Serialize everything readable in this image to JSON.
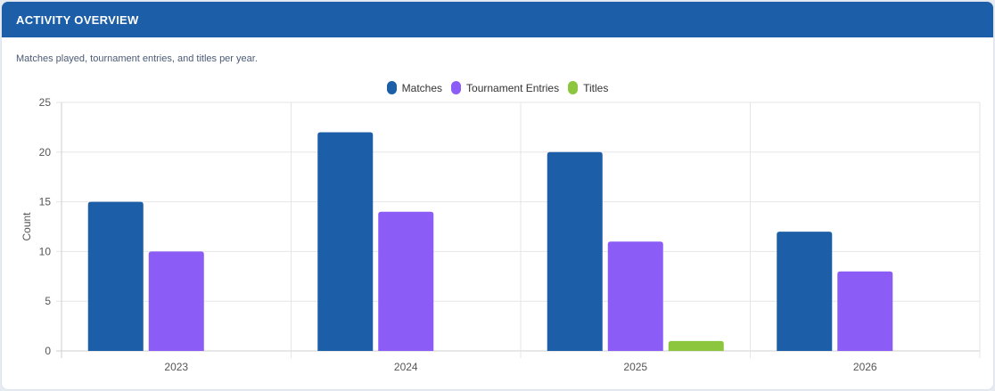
{
  "header": {
    "title": "ACTIVITY OVERVIEW"
  },
  "subtitle": "Matches played, tournament entries, and titles per year.",
  "colors": {
    "header_bg": "#1c5fa8",
    "matches": "#1c5fa8",
    "tournament_entries": "#8b5cf6",
    "titles": "#8cc63f"
  },
  "legend": [
    {
      "label": "Matches",
      "color": "#1c5fa8"
    },
    {
      "label": "Tournament Entries",
      "color": "#8b5cf6"
    },
    {
      "label": "Titles",
      "color": "#8cc63f"
    }
  ],
  "chart_data": {
    "type": "bar",
    "title": "Activity Overview",
    "subtitle": "Matches played, tournament entries, and titles per year.",
    "categories": [
      "2023",
      "2024",
      "2025",
      "2026"
    ],
    "series": [
      {
        "name": "Matches",
        "color": "#1c5fa8",
        "values": [
          15,
          22,
          20,
          12
        ]
      },
      {
        "name": "Tournament Entries",
        "color": "#8b5cf6",
        "values": [
          10,
          14,
          11,
          8
        ]
      },
      {
        "name": "Titles",
        "color": "#8cc63f",
        "values": [
          0,
          0,
          1,
          0
        ]
      }
    ],
    "xlabel": "",
    "ylabel": "Count",
    "ylim": [
      0,
      25
    ],
    "yticks": [
      0,
      5,
      10,
      15,
      20,
      25
    ],
    "grid": true,
    "legend_position": "top"
  }
}
